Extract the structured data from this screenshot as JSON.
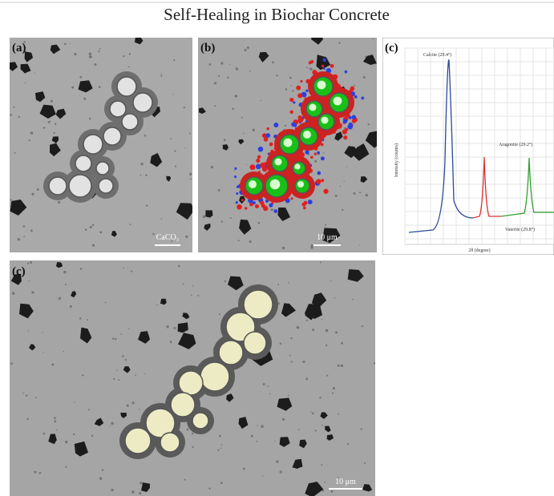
{
  "title": "Self-Healing in Biochar Concrete",
  "panels": [
    {
      "label": "(a)",
      "scale_bar": "CaCO₃"
    },
    {
      "label": "(b)",
      "scale_bar": "10 μm"
    },
    {
      "label": "(c)",
      "chart": {
        "y_label": "Intensity (counts)",
        "x_label": "2θ (degree)",
        "annotations": [
          "Calcite (29.4°)",
          "Aragonite (29.2°)",
          "Vaterite (29.8°)"
        ]
      }
    },
    {
      "label": "(c)",
      "scale_bar": "10 μm"
    }
  ]
}
